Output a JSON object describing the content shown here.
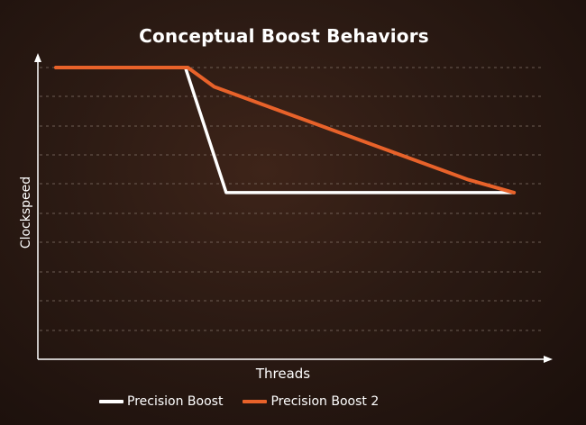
{
  "chart_data": {
    "type": "line",
    "title": "Conceptual Boost Behaviors",
    "xlabel": "Threads",
    "ylabel": "Clockspeed",
    "xlim": [
      0,
      100
    ],
    "ylim": [
      0,
      100
    ],
    "grid": true,
    "legend_position": "bottom",
    "series": [
      {
        "name": "Precision Boost",
        "color": "#ffffff",
        "x": [
          0,
          27,
          35.5,
          95.5
        ],
        "y": [
          91,
          91,
          52,
          52
        ]
      },
      {
        "name": "Precision Boost 2",
        "color": "#e8622a",
        "x": [
          0,
          27.5,
          33,
          86,
          95.5
        ],
        "y": [
          91,
          91,
          85,
          56,
          52
        ]
      }
    ]
  },
  "colors": {
    "gridline": "#8a7a70",
    "axis": "#ffffff"
  }
}
